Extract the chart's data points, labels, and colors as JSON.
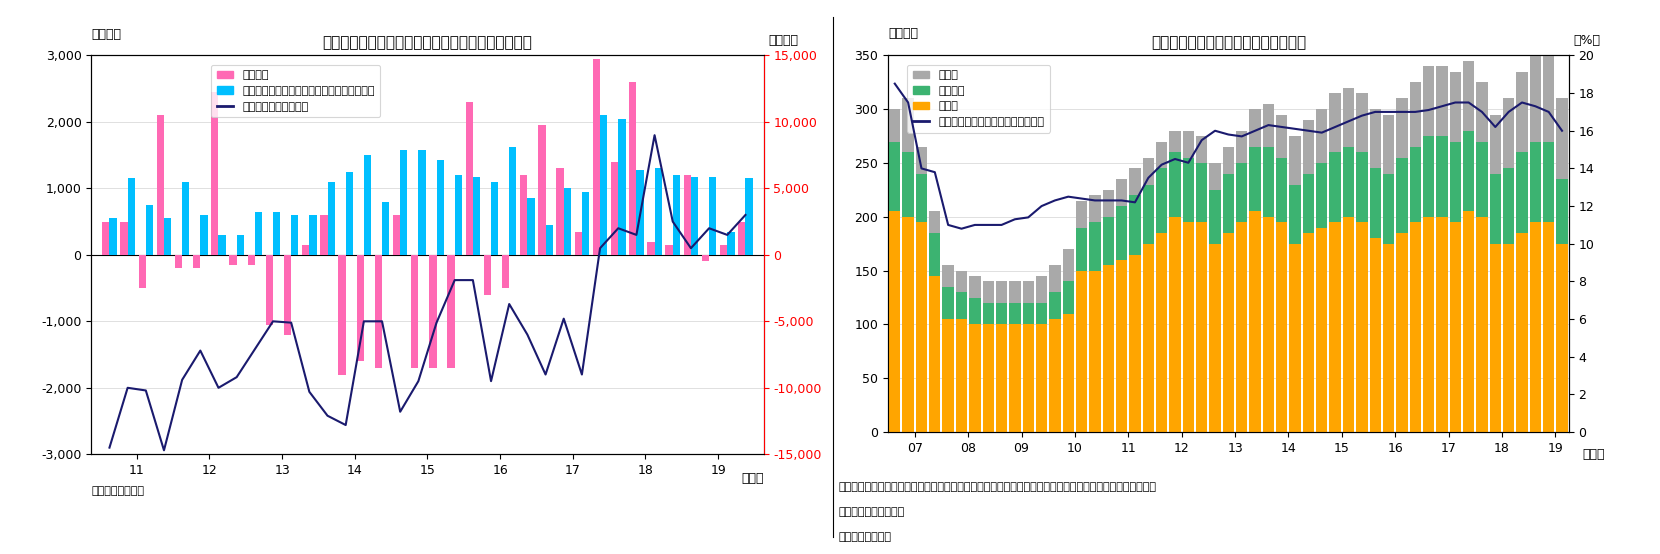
{
  "chart8": {
    "title": "（図表８）外貨預金・確定拠出年金・国債のフロー",
    "ylabel_left": "（億円）",
    "ylabel_right": "（億円）",
    "xlabel": "（年）",
    "source": "（資料）日本銀行",
    "x_labels": [
      "11",
      "12",
      "13",
      "14",
      "15",
      "16",
      "17",
      "18",
      "19"
    ],
    "pink_bars": [
      500,
      500,
      -500,
      2100,
      -200,
      -200,
      2450,
      -150,
      -150,
      -1050,
      -1200,
      150,
      600,
      -1800,
      -1600,
      -1700,
      600,
      -1700,
      -1700,
      -1700,
      2300,
      -600,
      -500,
      1200,
      1950,
      1300,
      350,
      2950,
      1400,
      2600,
      200,
      150,
      1200,
      -100,
      150,
      500
    ],
    "cyan_bars": [
      550,
      1150,
      750,
      550,
      1100,
      600,
      300,
      300,
      650,
      650,
      600,
      600,
      1100,
      1250,
      1500,
      800,
      1575,
      1575,
      1425,
      1200,
      1175,
      1100,
      1625,
      850,
      450,
      1000,
      950,
      2100,
      2050,
      1275,
      1300,
      1200,
      1175,
      1175,
      350,
      1150
    ],
    "navy_line": [
      -14500,
      -10000,
      -10200,
      -14700,
      -9400,
      -7200,
      -10000,
      -9200,
      -7100,
      -5000,
      -5100,
      -10300,
      -12100,
      -12800,
      -5000,
      -5000,
      -11800,
      -9500,
      -5100,
      -1900,
      -1900,
      -9500,
      -3700,
      -6000,
      -9000,
      -4800,
      -9000,
      500,
      2000,
      1500,
      9000,
      2500,
      500,
      2000,
      1500,
      3000
    ],
    "pink_color": "#FF69B4",
    "cyan_color": "#00BFFF",
    "navy_color": "#1a1a6e",
    "ylim_left": [
      -3000,
      3000
    ],
    "ylim_right": [
      -15000,
      15000
    ],
    "yticks_left": [
      -3000,
      -2000,
      -1000,
      0,
      1000,
      2000,
      3000
    ],
    "yticks_right": [
      -15000,
      -10000,
      -5000,
      0,
      5000,
      10000,
      15000
    ],
    "legend_labels": [
      "外貨預金",
      "株式等・投資信託受益証券（確定拠出年金）",
      "国債・財投債（右軸）"
    ]
  },
  "chart9": {
    "title": "（図表９）リスク性資産の残高と割合",
    "ylabel_left": "（兆円）",
    "ylabel_right": "（%）",
    "xlabel": "（年）",
    "source": "（資料）日本銀行",
    "note_line1": "（注）株式等、投資信託、外貨預金、対外証券投資、信託受益権、企業型確定拠出年金内の株式等、投資信",
    "note_line2": "　　　託を対象とした",
    "x_labels": [
      "07",
      "08",
      "09",
      "10",
      "11",
      "12",
      "13",
      "14",
      "15",
      "16",
      "17",
      "18",
      "19"
    ],
    "stocks": [
      205,
      200,
      195,
      145,
      105,
      105,
      100,
      100,
      100,
      100,
      100,
      100,
      105,
      110,
      150,
      150,
      155,
      160,
      165,
      175,
      185,
      200,
      195,
      195,
      175,
      185,
      195,
      205,
      200,
      195,
      175,
      185,
      190,
      195,
      200,
      195,
      180,
      175,
      185,
      195,
      200,
      200,
      195,
      205,
      200,
      175,
      175,
      185,
      195,
      195,
      175
    ],
    "investment_trust": [
      65,
      60,
      45,
      40,
      30,
      25,
      25,
      20,
      20,
      20,
      20,
      20,
      25,
      30,
      40,
      45,
      45,
      50,
      55,
      55,
      60,
      60,
      60,
      55,
      50,
      55,
      55,
      60,
      65,
      60,
      55,
      55,
      60,
      65,
      65,
      65,
      65,
      65,
      70,
      70,
      75,
      75,
      75,
      75,
      70,
      65,
      70,
      75,
      75,
      75,
      60
    ],
    "other": [
      30,
      50,
      25,
      20,
      20,
      20,
      20,
      20,
      20,
      20,
      20,
      25,
      25,
      30,
      25,
      25,
      25,
      25,
      25,
      25,
      25,
      20,
      25,
      25,
      25,
      25,
      30,
      35,
      40,
      40,
      45,
      50,
      50,
      55,
      55,
      55,
      55,
      55,
      55,
      60,
      65,
      65,
      65,
      65,
      55,
      55,
      65,
      75,
      80,
      85,
      75
    ],
    "ratio_line": [
      18.5,
      17.5,
      14.0,
      13.8,
      11.0,
      10.8,
      11.0,
      11.0,
      11.0,
      11.3,
      11.4,
      12.0,
      12.3,
      12.5,
      12.4,
      12.3,
      12.3,
      12.3,
      12.2,
      13.5,
      14.2,
      14.5,
      14.3,
      15.5,
      16.0,
      15.8,
      15.7,
      16.0,
      16.3,
      16.2,
      16.1,
      16.0,
      15.9,
      16.2,
      16.5,
      16.8,
      17.0,
      17.0,
      17.0,
      17.0,
      17.1,
      17.3,
      17.5,
      17.5,
      17.0,
      16.2,
      17.0,
      17.5,
      17.3,
      17.0,
      16.0
    ],
    "stocks_color": "#FFA500",
    "investment_trust_color": "#3CB371",
    "other_color": "#A9A9A9",
    "navy_color": "#1a1a6e",
    "ylim_left": [
      0,
      350
    ],
    "ylim_right": [
      0,
      20
    ],
    "yticks_left": [
      0,
      50,
      100,
      150,
      200,
      250,
      300,
      350
    ],
    "yticks_right": [
      0,
      2,
      4,
      6,
      8,
      10,
      12,
      14,
      16,
      18,
      20
    ],
    "legend_labels": [
      "その他",
      "投資信託",
      "株式等",
      "個人金融資産に占める割合（右軸）"
    ]
  }
}
